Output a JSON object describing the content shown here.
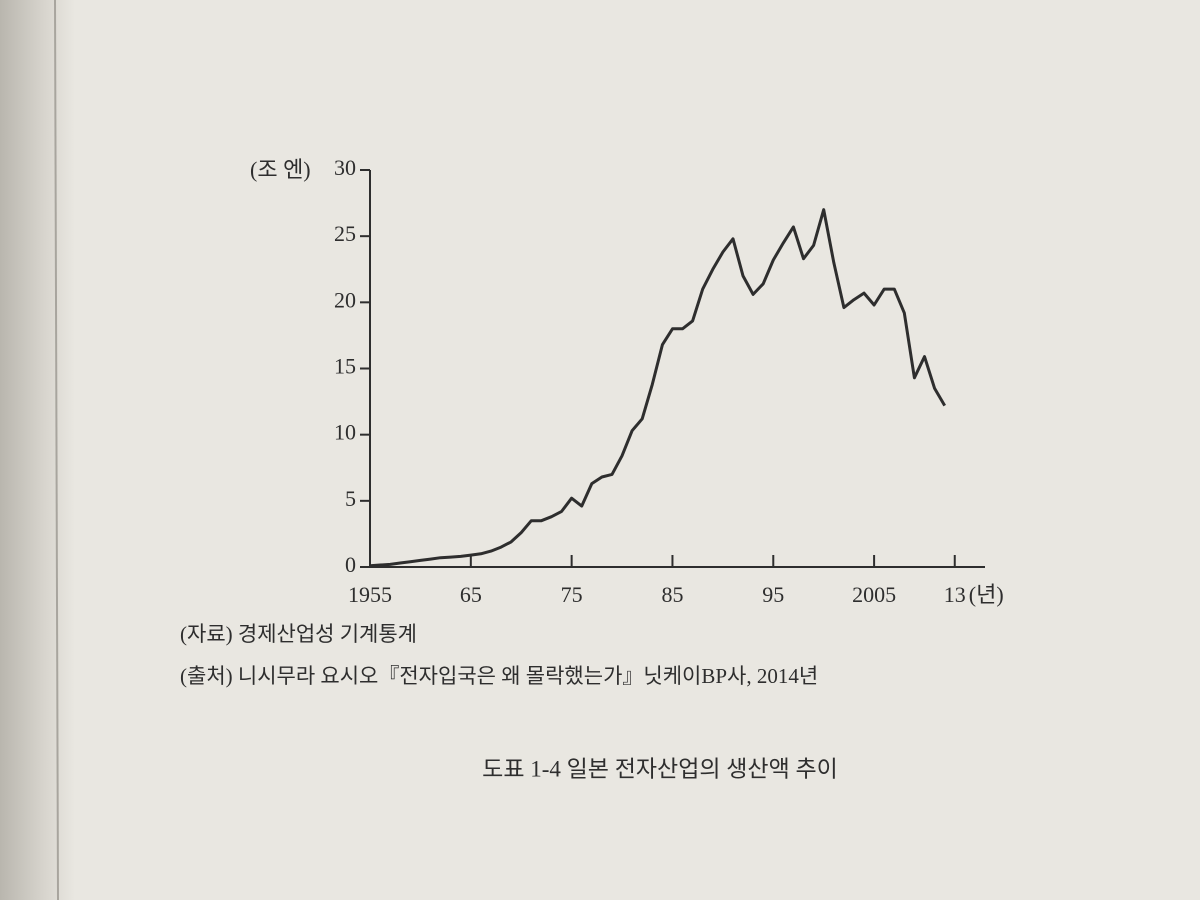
{
  "chart_data": {
    "type": "line",
    "y_label": "(조 엔)",
    "x_label": "(년)",
    "source": "(자료) 경제산업성 기계통계",
    "citation": "(출처) 니시무라 요시오『전자입국은 왜 몰락했는가』닛케이BP사, 2014년",
    "caption": "도표 1-4 일본 전자산업의 생산액 추이",
    "x": [
      1955,
      1956,
      1957,
      1958,
      1959,
      1960,
      1961,
      1962,
      1963,
      1964,
      1965,
      1966,
      1967,
      1968,
      1969,
      1970,
      1971,
      1972,
      1973,
      1974,
      1975,
      1976,
      1977,
      1978,
      1979,
      1980,
      1981,
      1982,
      1983,
      1984,
      1985,
      1986,
      1987,
      1988,
      1989,
      1990,
      1991,
      1992,
      1993,
      1994,
      1995,
      1996,
      1997,
      1998,
      1999,
      2000,
      2001,
      2002,
      2003,
      2004,
      2005,
      2006,
      2007,
      2008,
      2009,
      2010,
      2011,
      2012
    ],
    "series": [
      {
        "color": "#2e2e2e",
        "values": [
          0.1,
          0.15,
          0.2,
          0.3,
          0.4,
          0.5,
          0.6,
          0.7,
          0.75,
          0.8,
          0.9,
          1.0,
          1.2,
          1.5,
          1.9,
          2.6,
          3.5,
          3.5,
          3.8,
          4.2,
          5.2,
          4.6,
          6.3,
          6.8,
          7.0,
          8.4,
          10.3,
          11.2,
          13.8,
          16.8,
          18.0,
          18.0,
          18.6,
          21.0,
          22.5,
          23.8,
          24.8,
          22.0,
          20.6,
          21.4,
          23.2,
          24.5,
          25.7,
          23.3,
          24.3,
          27.0,
          23.0,
          19.6,
          20.2,
          20.7,
          19.8,
          21.0,
          21.0,
          19.2,
          14.3,
          15.9,
          13.5,
          12.2
        ]
      }
    ],
    "xlim": [
      1955,
      2016
    ],
    "ylim": [
      0,
      30
    ],
    "xticks": [
      1955,
      {
        "value": 1965,
        "label": "65"
      },
      {
        "value": 1975,
        "label": "75"
      },
      {
        "value": 1985,
        "label": "85"
      },
      {
        "value": 1995,
        "label": "95"
      },
      2005,
      {
        "value": 2013,
        "label": "13"
      }
    ],
    "yticks": [
      0,
      5,
      10,
      15,
      20,
      25,
      30
    ]
  }
}
